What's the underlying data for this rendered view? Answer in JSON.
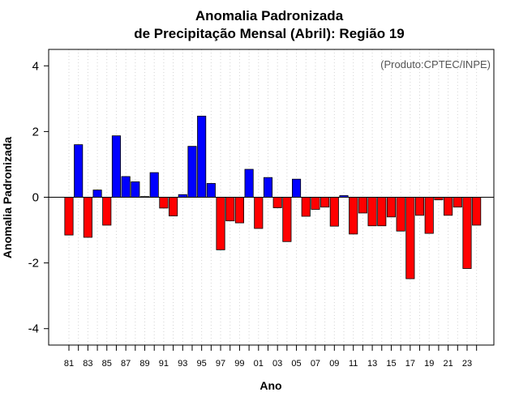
{
  "chart_data": {
    "type": "bar",
    "title": "Anomalia Padronizada",
    "subtitle": "de Precipitação Mensal (Abril): Região 19",
    "xlabel": "Ano",
    "ylabel": "Anomalia Padronizada",
    "annotation": "(Produto:CPTEC/INPE)",
    "ylim": [
      -4.5,
      4.5
    ],
    "yticks": [
      -4,
      -2,
      0,
      2,
      4
    ],
    "ytick_labels": [
      "-4",
      "-2",
      "0",
      "2",
      "4"
    ],
    "grid": true,
    "categories": [
      "81",
      "82",
      "83",
      "84",
      "85",
      "86",
      "87",
      "88",
      "89",
      "90",
      "91",
      "92",
      "93",
      "94",
      "95",
      "96",
      "97",
      "98",
      "99",
      "00",
      "01",
      "02",
      "03",
      "04",
      "05",
      "06",
      "07",
      "08",
      "09",
      "10",
      "11",
      "12",
      "13",
      "14",
      "15",
      "16",
      "17",
      "18",
      "19",
      "20",
      "21",
      "22",
      "23",
      "24"
    ],
    "xtick_labels": [
      "81",
      "83",
      "85",
      "87",
      "89",
      "91",
      "93",
      "95",
      "97",
      "99",
      "01",
      "03",
      "05",
      "07",
      "09",
      "11",
      "13",
      "15",
      "17",
      "19",
      "21",
      "23"
    ],
    "values": [
      -1.15,
      1.6,
      -1.22,
      0.22,
      -0.85,
      1.87,
      0.63,
      0.47,
      0.02,
      0.75,
      -0.33,
      -0.57,
      0.08,
      1.55,
      2.47,
      0.42,
      -1.6,
      -0.72,
      -0.78,
      0.85,
      -0.95,
      0.6,
      -0.32,
      -1.35,
      0.55,
      -0.58,
      -0.37,
      -0.3,
      -0.88,
      0.05,
      -1.12,
      -0.48,
      -0.87,
      -0.87,
      -0.6,
      -1.03,
      -2.48,
      -0.55,
      -1.1,
      -0.08,
      -0.55,
      -0.3,
      -2.17,
      -0.85
    ],
    "colors": {
      "positive": "#0000ff",
      "negative": "#ff0000",
      "outline": "#000000",
      "grid": "#d3d3d3",
      "frame": "#000000"
    }
  }
}
